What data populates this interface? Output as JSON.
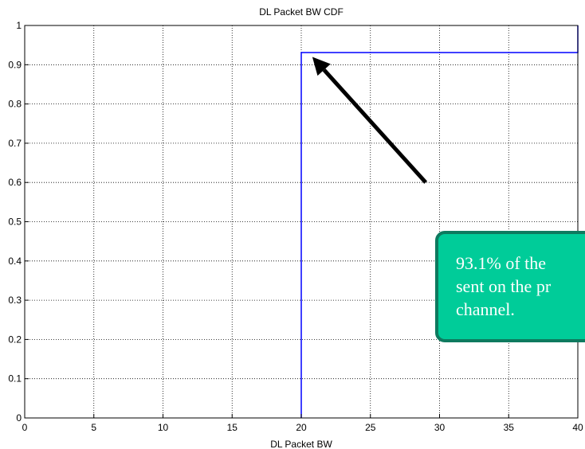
{
  "chart_data": {
    "type": "line",
    "title": "DL Packet BW CDF",
    "xlabel": "DL Packet BW",
    "ylabel": "",
    "xlim": [
      0,
      40
    ],
    "ylim": [
      0,
      1
    ],
    "grid": true,
    "x_ticks": [
      "0",
      "5",
      "10",
      "15",
      "20",
      "25",
      "30",
      "35",
      "40"
    ],
    "y_ticks": [
      "0",
      "0.1",
      "0.2",
      "0.3",
      "0.4",
      "0.5",
      "0.6",
      "0.7",
      "0.8",
      "0.9",
      "1"
    ],
    "series": [
      {
        "color": "#0000ff",
        "x": [
          20,
          20,
          40,
          40
        ],
        "y": [
          0,
          0.931,
          0.931,
          1
        ]
      }
    ],
    "annotation": {
      "lines": [
        "93.1% of the",
        "sent on the pr",
        "channel."
      ],
      "box_color": "#00cc99",
      "border_color": "#0e7a5f",
      "text_color": "#ffffff",
      "arrow_color": "#000000",
      "arrow_from": [
        29,
        0.6
      ],
      "arrow_to": [
        20.8,
        0.92
      ]
    }
  }
}
